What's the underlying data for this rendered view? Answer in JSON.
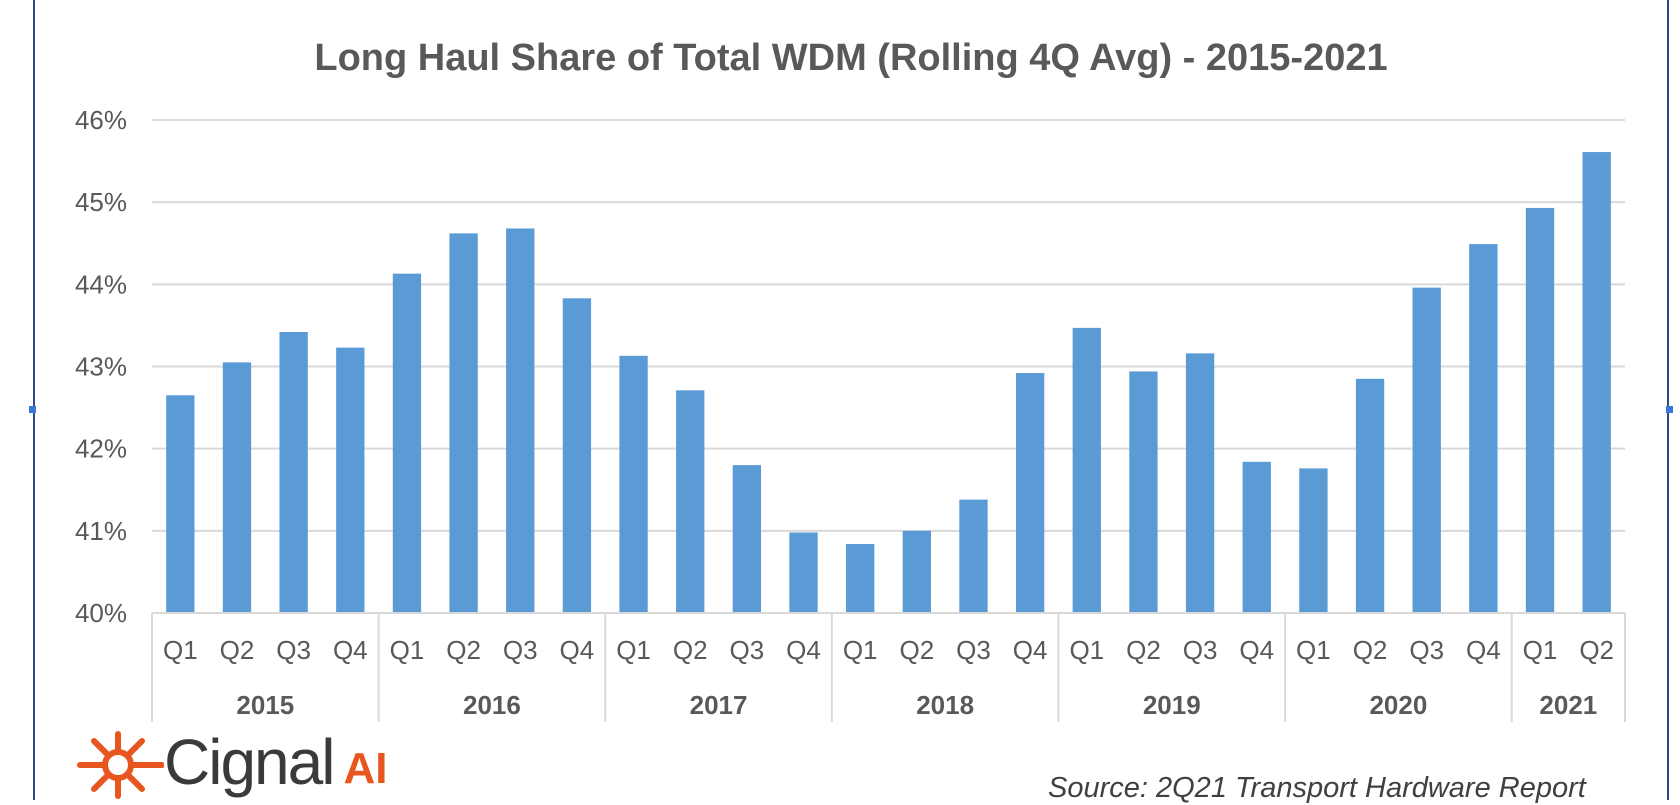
{
  "chart_data": {
    "type": "bar",
    "title": "Long Haul Share of Total WDM (Rolling 4Q Avg) - 2015-2021",
    "xlabel": "",
    "ylabel": "",
    "ylim": [
      40,
      46
    ],
    "ytick_labels": [
      "40%",
      "41%",
      "42%",
      "43%",
      "44%",
      "45%",
      "46%"
    ],
    "grid": true,
    "legend": "none",
    "bar_color": "#5b9bd5",
    "categories": [
      "Q1",
      "Q2",
      "Q3",
      "Q4",
      "Q1",
      "Q2",
      "Q3",
      "Q4",
      "Q1",
      "Q2",
      "Q3",
      "Q4",
      "Q1",
      "Q2",
      "Q3",
      "Q4",
      "Q1",
      "Q2",
      "Q3",
      "Q4",
      "Q1",
      "Q2",
      "Q3",
      "Q4",
      "Q1",
      "Q2"
    ],
    "groups": [
      {
        "label": "2015",
        "count": 4
      },
      {
        "label": "2016",
        "count": 4
      },
      {
        "label": "2017",
        "count": 4
      },
      {
        "label": "2018",
        "count": 4
      },
      {
        "label": "2019",
        "count": 4
      },
      {
        "label": "2020",
        "count": 4
      },
      {
        "label": "2021",
        "count": 2
      }
    ],
    "values": [
      42.65,
      43.05,
      43.42,
      43.23,
      44.13,
      44.62,
      44.68,
      43.83,
      43.13,
      42.71,
      41.8,
      40.98,
      40.84,
      41.0,
      41.38,
      42.92,
      43.47,
      42.94,
      43.16,
      41.84,
      41.76,
      42.85,
      43.96,
      44.49,
      44.93,
      45.61
    ]
  },
  "branding": {
    "logo_name": "Cignal",
    "logo_ai": "AI",
    "logo_icon": "sun-burst-icon",
    "accent_color": "#e8561f"
  },
  "source_text": "Source: 2Q21 Transport Hardware Report"
}
